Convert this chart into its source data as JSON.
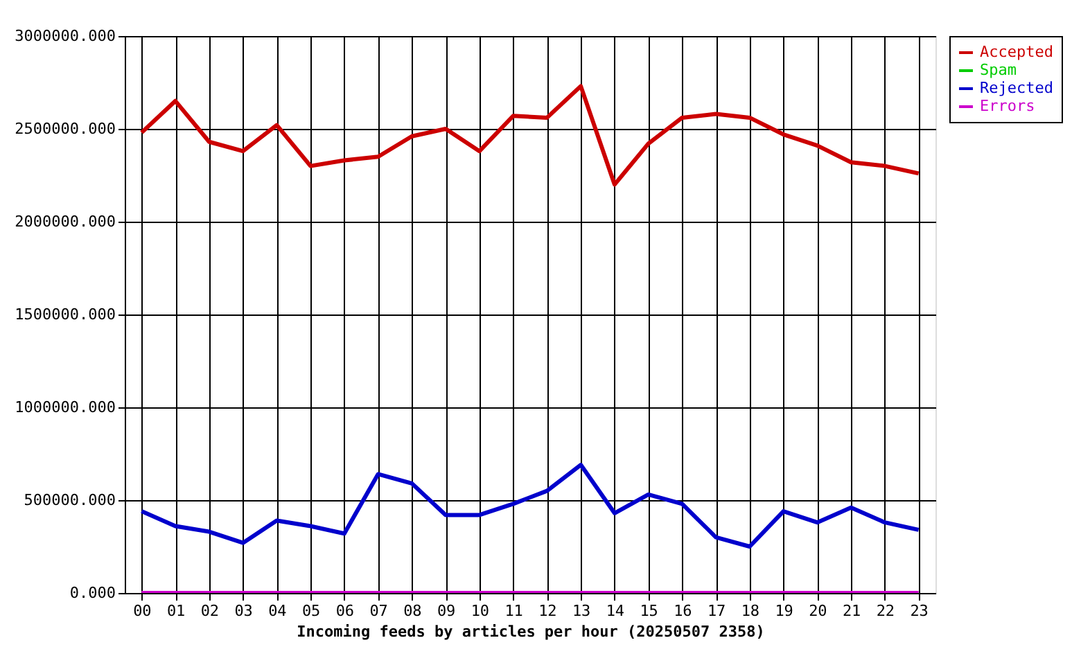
{
  "chart_data": {
    "type": "line",
    "xlabel": "Incoming feeds by articles per hour (20250507 2358)",
    "categories": [
      "00",
      "01",
      "02",
      "03",
      "04",
      "05",
      "06",
      "07",
      "08",
      "09",
      "10",
      "11",
      "12",
      "13",
      "14",
      "15",
      "16",
      "17",
      "18",
      "19",
      "20",
      "21",
      "22",
      "23"
    ],
    "series": [
      {
        "name": "Accepted",
        "color": "#cc0000",
        "values": [
          2480000,
          2650000,
          2430000,
          2380000,
          2520000,
          2300000,
          2330000,
          2350000,
          2460000,
          2500000,
          2380000,
          2570000,
          2560000,
          2730000,
          2200000,
          2420000,
          2560000,
          2580000,
          2560000,
          2470000,
          2410000,
          2320000,
          2300000,
          2260000
        ]
      },
      {
        "name": "Spam",
        "color": "#00cc00",
        "values": [
          null,
          null,
          null,
          null,
          null,
          null,
          null,
          null,
          null,
          null,
          null,
          null,
          null,
          null,
          null,
          null,
          null,
          null,
          null,
          null,
          null,
          null,
          null,
          null
        ]
      },
      {
        "name": "Rejected",
        "color": "#0000cc",
        "values": [
          440000,
          360000,
          330000,
          270000,
          390000,
          360000,
          320000,
          640000,
          590000,
          420000,
          420000,
          480000,
          550000,
          690000,
          430000,
          530000,
          480000,
          300000,
          250000,
          440000,
          380000,
          460000,
          380000,
          340000
        ]
      },
      {
        "name": "Errors",
        "color": "#cc00cc",
        "values": [
          0,
          0,
          0,
          0,
          0,
          0,
          0,
          0,
          0,
          0,
          0,
          0,
          0,
          0,
          0,
          0,
          0,
          0,
          0,
          0,
          0,
          0,
          0,
          0
        ]
      }
    ],
    "ylim": [
      0,
      3000000
    ],
    "yticks": [
      {
        "value": 0,
        "label": "0.000"
      },
      {
        "value": 500000,
        "label": "500000.000"
      },
      {
        "value": 1000000,
        "label": "1000000.000"
      },
      {
        "value": 1500000,
        "label": "1500000.000"
      },
      {
        "value": 2000000,
        "label": "2000000.000"
      },
      {
        "value": 2500000,
        "label": "2500000.000"
      },
      {
        "value": 3000000,
        "label": "3000000.000"
      }
    ],
    "grid": true,
    "legend": "top right",
    "marker": "none",
    "line_style": "solid"
  }
}
